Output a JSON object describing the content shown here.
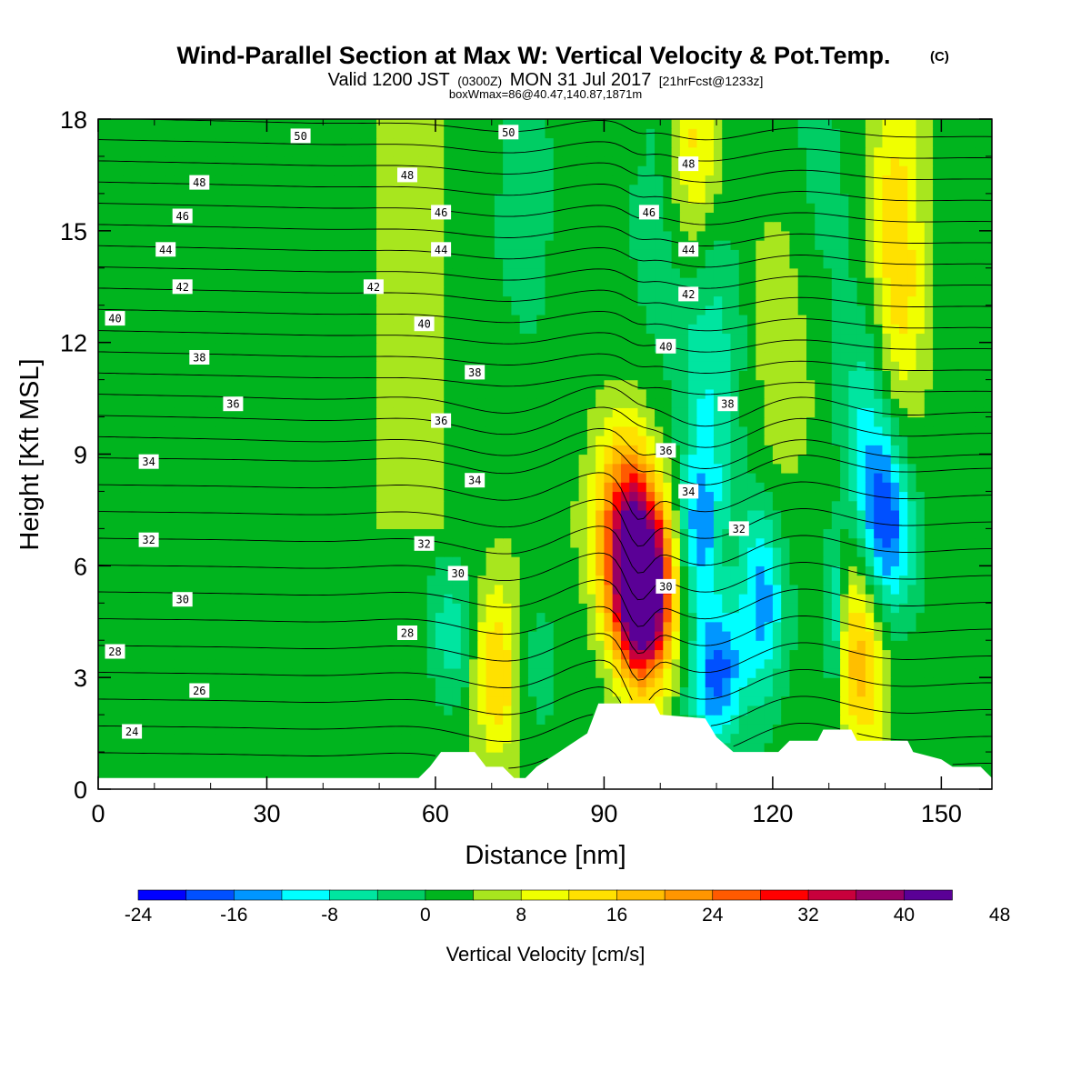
{
  "header": {
    "title_main": "Wind-Parallel Section at Max W: Vertical Velocity & Pot.Temp.",
    "title_mark": "(C)",
    "valid_prefix": "Valid 1200 JST",
    "valid_zulu": "(0300Z)",
    "valid_date": "MON 31 Jul 2017",
    "forecast_info": "[21hrFcst@1233z]",
    "box_info": "boxWmax=86@40.47,140.87,1871m"
  },
  "colors": {
    "terrain": "#ffffff",
    "contour": "#000000",
    "palette": [
      "#0000ff",
      "#0050ff",
      "#0096ff",
      "#00ffff",
      "#00e5a0",
      "#00cd64",
      "#00b41e",
      "#a8e61e",
      "#f0ff00",
      "#ffe100",
      "#ffbe00",
      "#ff9600",
      "#ff5a00",
      "#ff0000",
      "#c8003c",
      "#960064",
      "#5a0096"
    ]
  },
  "chart_data": {
    "type": "heatmap",
    "xlabel": "Distance [nm]",
    "ylabel": "Height [Kft MSL]",
    "xlim": [
      0,
      159
    ],
    "ylim": [
      0,
      18
    ],
    "x_ticks": [
      0,
      30,
      60,
      90,
      120,
      150
    ],
    "y_ticks": [
      0,
      3,
      6,
      9,
      12,
      15,
      18
    ],
    "colorbar": {
      "title": "Vertical Velocity [cm/s]",
      "bounds": [
        -24,
        -20,
        -16,
        -12,
        -8,
        -4,
        0,
        4,
        8,
        12,
        16,
        20,
        24,
        28,
        32,
        36,
        40,
        44,
        48,
        52
      ],
      "tick_labels": [
        "-24",
        "-16",
        "-8",
        "0",
        "8",
        "16",
        "24",
        "32",
        "40",
        "48"
      ]
    },
    "vertical_velocity_features": [
      {
        "x": 97,
        "y": 5.2,
        "peak": 50,
        "sx": 3.5,
        "sy": 1.6
      },
      {
        "x": 94,
        "y": 7.2,
        "peak": 26,
        "sx": 4,
        "sy": 1.8
      },
      {
        "x": 71,
        "y": 3.2,
        "peak": 14,
        "sx": 3,
        "sy": 1.8
      },
      {
        "x": 136,
        "y": 3.8,
        "peak": 18,
        "sx": 3.5,
        "sy": 2
      },
      {
        "x": 142,
        "y": 14,
        "peak": 14,
        "sx": 3.5,
        "sy": 4
      },
      {
        "x": 106,
        "y": 17,
        "peak": 12,
        "sx": 3,
        "sy": 2
      },
      {
        "x": 122,
        "y": 12,
        "peak": 6,
        "sx": 4,
        "sy": 3
      },
      {
        "x": 63,
        "y": 4.2,
        "peak": -8,
        "sx": 3,
        "sy": 1.4
      },
      {
        "x": 78,
        "y": 3.5,
        "peak": -4,
        "sx": 3,
        "sy": 1.5
      },
      {
        "x": 107,
        "y": 7,
        "peak": -14,
        "sx": 2.5,
        "sy": 1.6
      },
      {
        "x": 110,
        "y": 3,
        "peak": -20,
        "sx": 3,
        "sy": 1.3
      },
      {
        "x": 118,
        "y": 5,
        "peak": -16,
        "sx": 3,
        "sy": 1.8
      },
      {
        "x": 140,
        "y": 7,
        "peak": -24,
        "sx": 3.5,
        "sy": 2.0
      },
      {
        "x": 131,
        "y": 4.5,
        "peak": -14,
        "sx": 1.2,
        "sy": 1.5
      },
      {
        "x": 109,
        "y": 11,
        "peak": -9,
        "sx": 4,
        "sy": 3
      },
      {
        "x": 137,
        "y": 10.5,
        "peak": -9,
        "sx": 3.5,
        "sy": 2.2
      },
      {
        "x": 100,
        "y": 15,
        "peak": -4,
        "sx": 4,
        "sy": 3
      },
      {
        "x": 76,
        "y": 16,
        "peak": -4,
        "sx": 4,
        "sy": 3
      },
      {
        "x": 128,
        "y": 16,
        "peak": -4,
        "sx": 4,
        "sy": 3
      }
    ],
    "terrain_kft": [
      [
        0,
        0.3
      ],
      [
        57,
        0.3
      ],
      [
        59,
        0.6
      ],
      [
        61,
        1.0
      ],
      [
        67,
        1.0
      ],
      [
        69,
        0.6
      ],
      [
        72,
        0.6
      ],
      [
        74,
        0.3
      ],
      [
        76,
        0.3
      ],
      [
        78,
        0.6
      ],
      [
        82,
        1.0
      ],
      [
        84,
        1.2
      ],
      [
        87,
        1.5
      ],
      [
        88,
        1.9
      ],
      [
        89,
        2.3
      ],
      [
        99,
        2.3
      ],
      [
        100,
        2.0
      ],
      [
        108,
        1.9
      ],
      [
        110,
        1.4
      ],
      [
        113,
        1.0
      ],
      [
        121,
        1.0
      ],
      [
        123,
        1.3
      ],
      [
        128,
        1.3
      ],
      [
        129,
        1.6
      ],
      [
        134,
        1.6
      ],
      [
        135,
        1.3
      ],
      [
        144,
        1.3
      ],
      [
        145,
        1.0
      ],
      [
        150,
        0.8
      ],
      [
        152,
        0.6
      ],
      [
        157,
        0.6
      ],
      [
        159,
        0.3
      ]
    ],
    "theta_levels": [
      22,
      23,
      24,
      25,
      26,
      27,
      28,
      29,
      30,
      31,
      32,
      33,
      34,
      35,
      36,
      37,
      38,
      39,
      40,
      41,
      42,
      43,
      44,
      45,
      46,
      47,
      48,
      49,
      50
    ],
    "contour_labels": [
      {
        "text": "50",
        "x": 36,
        "y": 17.55
      },
      {
        "text": "50",
        "x": 73,
        "y": 17.65
      },
      {
        "text": "48",
        "x": 18,
        "y": 16.3
      },
      {
        "text": "48",
        "x": 55,
        "y": 16.5
      },
      {
        "text": "48",
        "x": 105,
        "y": 16.8
      },
      {
        "text": "46",
        "x": 15,
        "y": 15.4
      },
      {
        "text": "46",
        "x": 61,
        "y": 15.5
      },
      {
        "text": "46",
        "x": 98,
        "y": 15.5
      },
      {
        "text": "44",
        "x": 12,
        "y": 14.5
      },
      {
        "text": "44",
        "x": 61,
        "y": 14.5
      },
      {
        "text": "44",
        "x": 105,
        "y": 14.5
      },
      {
        "text": "42",
        "x": 15,
        "y": 13.5
      },
      {
        "text": "42",
        "x": 49,
        "y": 13.5
      },
      {
        "text": "42",
        "x": 105,
        "y": 13.3
      },
      {
        "text": "40",
        "x": 3,
        "y": 12.65
      },
      {
        "text": "40",
        "x": 58,
        "y": 12.5
      },
      {
        "text": "40",
        "x": 101,
        "y": 11.9
      },
      {
        "text": "38",
        "x": 18,
        "y": 11.6
      },
      {
        "text": "38",
        "x": 67,
        "y": 11.2
      },
      {
        "text": "38",
        "x": 112,
        "y": 10.35
      },
      {
        "text": "36",
        "x": 24,
        "y": 10.35
      },
      {
        "text": "36",
        "x": 61,
        "y": 9.9
      },
      {
        "text": "36",
        "x": 101,
        "y": 9.1
      },
      {
        "text": "34",
        "x": 9,
        "y": 8.8
      },
      {
        "text": "34",
        "x": 67,
        "y": 8.3
      },
      {
        "text": "34",
        "x": 105,
        "y": 8.0
      },
      {
        "text": "32",
        "x": 9,
        "y": 6.7
      },
      {
        "text": "32",
        "x": 58,
        "y": 6.6
      },
      {
        "text": "32",
        "x": 114,
        "y": 7.0
      },
      {
        "text": "30",
        "x": 15,
        "y": 5.1
      },
      {
        "text": "30",
        "x": 64,
        "y": 5.8
      },
      {
        "text": "30",
        "x": 101,
        "y": 5.45
      },
      {
        "text": "28",
        "x": 3,
        "y": 3.7
      },
      {
        "text": "28",
        "x": 55,
        "y": 4.2
      },
      {
        "text": "26",
        "x": 18,
        "y": 2.65
      },
      {
        "text": "24",
        "x": 6,
        "y": 1.55
      }
    ]
  }
}
